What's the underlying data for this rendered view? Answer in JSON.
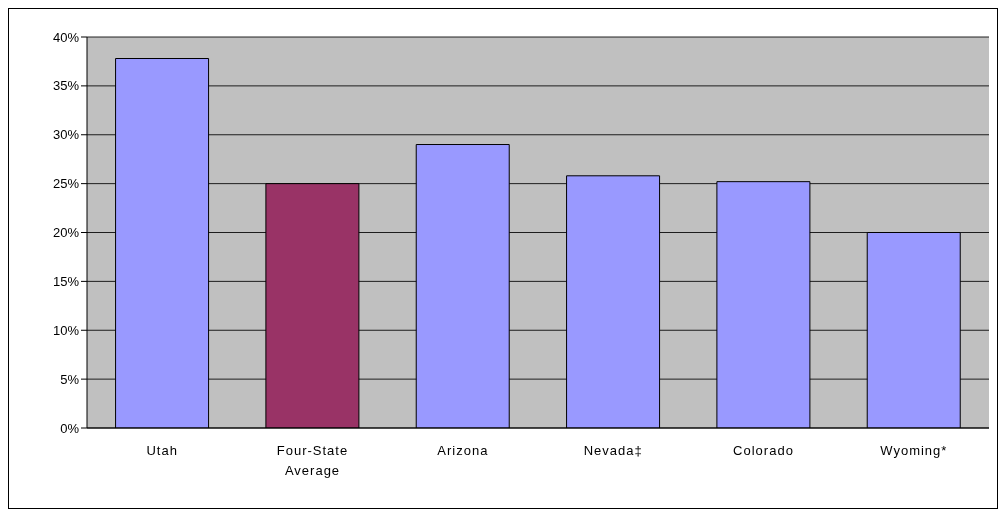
{
  "chart_data": {
    "type": "bar",
    "categories": [
      "Utah",
      "Four-State Average",
      "Arizona",
      "Nevada‡",
      "Colorado",
      "Wyoming*"
    ],
    "values": [
      37.8,
      25.0,
      29.0,
      25.8,
      25.2,
      20.0
    ],
    "colors": [
      "#9999ff",
      "#993366",
      "#9999ff",
      "#9999ff",
      "#9999ff",
      "#9999ff"
    ],
    "ylim": [
      0,
      40
    ],
    "yticks": [
      {
        "value": 0,
        "label": "0%"
      },
      {
        "value": 5,
        "label": "5%"
      },
      {
        "value": 10,
        "label": "10%"
      },
      {
        "value": 15,
        "label": "15%"
      },
      {
        "value": 20,
        "label": "20%"
      },
      {
        "value": 25,
        "label": "25%"
      },
      {
        "value": 30,
        "label": "30%"
      },
      {
        "value": 35,
        "label": "35%"
      },
      {
        "value": 40,
        "label": "40%"
      }
    ],
    "grid": "y",
    "legend": false
  }
}
